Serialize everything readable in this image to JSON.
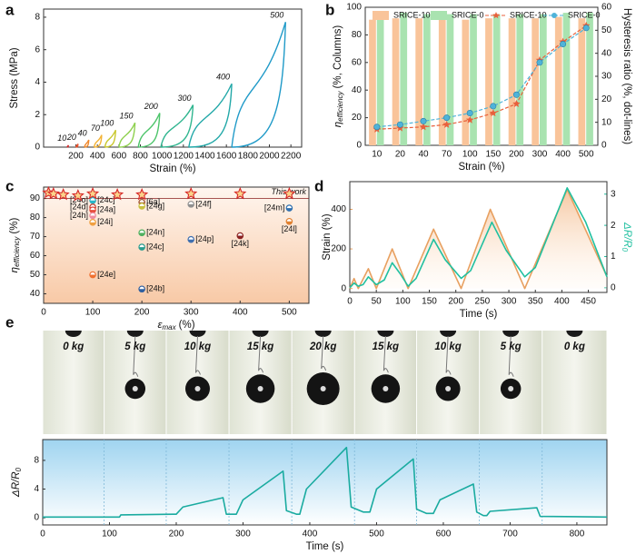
{
  "panel_labels": [
    "a",
    "b",
    "c",
    "d",
    "e"
  ],
  "chart_data": [
    {
      "type": "hysteresis",
      "xlabel": "Strain (%)",
      "ylabel": "Stress (MPa)",
      "xlim": [
        -100,
        2300
      ],
      "xticks": [
        200,
        400,
        600,
        800,
        1000,
        1200,
        1400,
        1600,
        1800,
        2000,
        2200
      ],
      "ylim": [
        0,
        8.5
      ],
      "yticks": [
        0,
        2,
        4,
        6,
        8
      ],
      "series": [
        {
          "name": "10",
          "color": "#d62728",
          "x": [
            120,
            130
          ],
          "values": [
            0,
            0.12
          ]
        },
        {
          "name": "20",
          "color": "#e8502a",
          "x": [
            200,
            220
          ],
          "values": [
            0,
            0.2
          ]
        },
        {
          "name": "40",
          "color": "#f0892c",
          "x": [
            280,
            320
          ],
          "values": [
            0,
            0.45
          ]
        },
        {
          "name": "70",
          "color": "#f3b234",
          "x": [
            370,
            440
          ],
          "values": [
            0,
            0.75
          ]
        },
        {
          "name": "100",
          "color": "#c9c830",
          "x": [
            470,
            570
          ],
          "values": [
            0,
            1.05
          ]
        },
        {
          "name": "150",
          "color": "#8fd14f",
          "x": [
            600,
            750
          ],
          "values": [
            0,
            1.5
          ]
        },
        {
          "name": "200",
          "color": "#4cc46a",
          "x": [
            780,
            980
          ],
          "values": [
            0,
            2.1
          ]
        },
        {
          "name": "300",
          "color": "#2fb58f",
          "x": [
            990,
            1290
          ],
          "values": [
            0,
            2.6
          ]
        },
        {
          "name": "400",
          "color": "#22a8a8",
          "x": [
            1250,
            1650
          ],
          "values": [
            0,
            3.9
          ]
        },
        {
          "name": "500",
          "color": "#1f9ac8",
          "x": [
            1650,
            2150
          ],
          "values": [
            0,
            7.7
          ]
        }
      ]
    },
    {
      "type": "bar",
      "xlabel": "Strain (%)",
      "ylabel": [
        "η",
        "efficiency",
        "(%, Columns)"
      ],
      "y2label": "Hysteresis ratio (%, dot-lines)",
      "categories": [
        "10",
        "20",
        "40",
        "70",
        "100",
        "150",
        "200",
        "300",
        "400",
        "500"
      ],
      "ylim": [
        0,
        100
      ],
      "yticks": [
        0,
        20,
        40,
        60,
        80,
        100
      ],
      "y2lim": [
        0,
        60
      ],
      "y2ticks": [
        0,
        10,
        20,
        30,
        40,
        50,
        60
      ],
      "series": [
        {
          "name": "SRICE-10",
          "color": "#f9c49a",
          "values": [
            91,
            92,
            92,
            92,
            91,
            92,
            92,
            92,
            93,
            92
          ]
        },
        {
          "name": "SRICE-0",
          "color": "#a9e3b0",
          "values": [
            95,
            96,
            95,
            95,
            95,
            95,
            95,
            95,
            96,
            96
          ]
        },
        {
          "name": "SRICE-10",
          "color": "#e8603c",
          "axis": "y2",
          "marker": "star",
          "values": [
            7,
            7.5,
            8,
            9,
            11,
            14,
            18,
            37,
            45,
            52
          ]
        },
        {
          "name": "SRICE-0",
          "color": "#4fb3d9",
          "axis": "y2",
          "marker": "circle",
          "values": [
            8,
            9,
            10.5,
            12,
            14,
            17,
            22,
            36,
            44,
            51
          ]
        }
      ]
    },
    {
      "type": "scatter",
      "xlabel": [
        "ε",
        "max",
        "(%)"
      ],
      "ylabel": [
        "η",
        "efficiency",
        "(%)"
      ],
      "xlim": [
        0,
        540
      ],
      "xticks": [
        0,
        100,
        200,
        300,
        400,
        500
      ],
      "ylim": [
        35,
        96
      ],
      "yticks": [
        40,
        50,
        60,
        70,
        80,
        90
      ],
      "reference_line": 90,
      "this_work": {
        "name": "This work",
        "color": "#d62728",
        "x": [
          10,
          20,
          40,
          70,
          100,
          150,
          200,
          300,
          400,
          500
        ],
        "values": [
          93,
          92.5,
          92,
          91.5,
          92.5,
          92,
          92,
          92.5,
          92.5,
          92.5
        ]
      },
      "points": [
        {
          "label": "[24o]",
          "color": "#e8603c",
          "x": 100,
          "y": 89
        },
        {
          "label": "[24c]",
          "color": "#29b6c8",
          "x": 100,
          "y": 89
        },
        {
          "label": "[24d]",
          "color": "#c0392b",
          "x": 100,
          "y": 85.5
        },
        {
          "label": "[24a]",
          "color": "#e74c3c",
          "x": 100,
          "y": 84
        },
        {
          "label": "[24h]",
          "color": "#f08ca0",
          "x": 100,
          "y": 81
        },
        {
          "label": "[24i]",
          "color": "#f0a040",
          "x": 100,
          "y": 77.5
        },
        {
          "label": "[24e]",
          "color": "#f07030",
          "x": 100,
          "y": 50
        },
        {
          "label": "[6a]",
          "color": "#a0522d",
          "x": 200,
          "y": 88
        },
        {
          "label": "[24g]",
          "color": "#c8c040",
          "x": 200,
          "y": 86
        },
        {
          "label": "[24n]",
          "color": "#50b060",
          "x": 200,
          "y": 72
        },
        {
          "label": "[24c]",
          "color": "#2a9d8f",
          "x": 200,
          "y": 64.5
        },
        {
          "label": "[24b]",
          "color": "#3060a0",
          "x": 200,
          "y": 42.5
        },
        {
          "label": "[24f]",
          "color": "#909090",
          "x": 300,
          "y": 87
        },
        {
          "label": "[24p]",
          "color": "#4070b0",
          "x": 300,
          "y": 68.5
        },
        {
          "label": "[24k]",
          "color": "#8b2020",
          "x": 400,
          "y": 70.5
        },
        {
          "label": "[24m]",
          "color": "#3070b0",
          "x": 500,
          "y": 85
        },
        {
          "label": "[24l]",
          "color": "#e08030",
          "x": 500,
          "y": 78
        }
      ]
    },
    {
      "type": "line",
      "xlabel": "Time (s)",
      "ylabel": "Strain (%)",
      "y2label": [
        "ΔR/R",
        "0"
      ],
      "xlim": [
        0,
        485
      ],
      "xticks": [
        0,
        50,
        100,
        150,
        200,
        250,
        300,
        350,
        400,
        450
      ],
      "ylim": [
        -20,
        540
      ],
      "yticks": [
        0,
        200,
        400
      ],
      "y2lim": [
        -0.15,
        3.4
      ],
      "y2ticks": [
        0,
        1,
        2,
        3
      ],
      "series": [
        {
          "color": "#e8a060",
          "area": true,
          "x": [
            0,
            8,
            16,
            35,
            50,
            80,
            110,
            158,
            210,
            265,
            330,
            410,
            485
          ],
          "values": [
            0,
            50,
            0,
            100,
            0,
            200,
            0,
            300,
            0,
            400,
            0,
            500,
            60
          ]
        },
        {
          "color": "#20c0a0",
          "axis": "y2",
          "x": [
            0,
            8,
            16,
            25,
            35,
            50,
            65,
            80,
            95,
            110,
            125,
            158,
            180,
            210,
            228,
            268,
            295,
            330,
            350,
            410,
            445,
            485
          ],
          "values": [
            0,
            0.15,
            0.05,
            0.1,
            0.35,
            0.1,
            0.25,
            0.8,
            0.45,
            0.05,
            0.3,
            1.55,
            0.9,
            0.3,
            0.55,
            2.1,
            1.2,
            0.35,
            0.65,
            3.2,
            2.1,
            0.35
          ]
        }
      ]
    },
    {
      "type": "line",
      "xlabel": "Time (s)",
      "ylabel": [
        "ΔR/R",
        "0"
      ],
      "xlim": [
        0,
        845
      ],
      "xticks": [
        0,
        100,
        200,
        300,
        400,
        500,
        600,
        700,
        800
      ],
      "ylim": [
        -1,
        10.9
      ],
      "yticks": [
        0,
        4,
        8
      ],
      "stage_lines": [
        92,
        185,
        279,
        373,
        467,
        560,
        654,
        748
      ],
      "photos": {
        "values": [
          0,
          5,
          10,
          15,
          20,
          15,
          10,
          5,
          0
        ],
        "value_labels": [
          "0 kg",
          "5 kg",
          "10 kg",
          "15 kg",
          "20 kg",
          "15 kg",
          "10 kg",
          "5 kg",
          "0 kg"
        ]
      },
      "series": [
        {
          "color": "#1aaba0",
          "x": [
            0,
            115,
            117,
            195,
            200,
            210,
            270,
            275,
            290,
            300,
            360,
            365,
            380,
            385,
            395,
            455,
            462,
            480,
            490,
            500,
            555,
            560,
            575,
            585,
            595,
            645,
            650,
            660,
            665,
            670,
            740,
            745,
            845
          ],
          "values": [
            0.1,
            0.1,
            0.4,
            0.5,
            0.5,
            1.5,
            2.8,
            0.5,
            0.5,
            2.5,
            6.5,
            1.0,
            0.5,
            0.5,
            4,
            9.8,
            1.5,
            0.8,
            0.8,
            4,
            8.2,
            1.2,
            0.6,
            0.6,
            2.5,
            4.7,
            0.8,
            0.3,
            0.3,
            0.9,
            1.4,
            0.2,
            0.1
          ]
        }
      ]
    }
  ]
}
